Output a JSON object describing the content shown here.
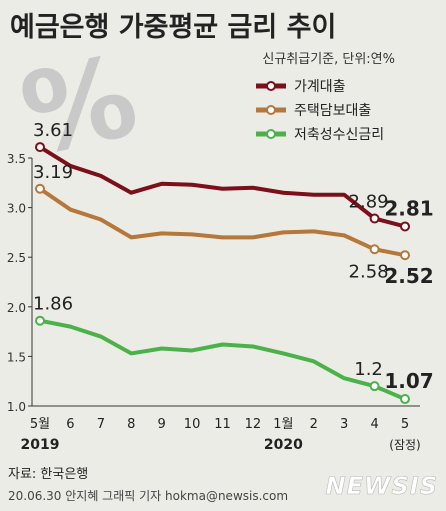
{
  "title": "예금은행 가중평균 금리 추이",
  "subtitle": "신규취급기준, 단위:연%",
  "source": "자료: 한국은행",
  "credit": "20.06.30 안지혜 그래픽 기자 hokma@newsis.com",
  "logo": "NEWSIS",
  "decoration_text": "%",
  "chart_data": {
    "type": "line",
    "x": [
      "5월",
      "6",
      "7",
      "8",
      "9",
      "10",
      "11",
      "12",
      "1월",
      "2",
      "3",
      "4",
      "5"
    ],
    "x_sublabels": [
      {
        "index": 0,
        "text": "2019"
      },
      {
        "index": 8,
        "text": "2020"
      },
      {
        "index": 12,
        "text": "(잠정)"
      }
    ],
    "ylim": [
      1.0,
      3.5
    ],
    "yticks": [
      "1.0",
      "1.5",
      "2.0",
      "2.5",
      "3.0",
      "3.5"
    ],
    "grid": false,
    "legend_position": "top-right",
    "series": [
      {
        "name": "가계대출",
        "color": "#7b0f1a",
        "values": [
          3.61,
          3.42,
          3.32,
          3.15,
          3.24,
          3.23,
          3.19,
          3.2,
          3.15,
          3.13,
          3.13,
          2.89,
          2.81
        ]
      },
      {
        "name": "주택담보대출",
        "color": "#b5773a",
        "values": [
          3.19,
          2.98,
          2.88,
          2.7,
          2.74,
          2.73,
          2.7,
          2.7,
          2.75,
          2.76,
          2.72,
          2.58,
          2.52
        ]
      },
      {
        "name": "저축성수신금리",
        "color": "#4bb24a",
        "values": [
          1.86,
          1.8,
          1.7,
          1.53,
          1.58,
          1.56,
          1.62,
          1.6,
          1.53,
          1.45,
          1.28,
          1.2,
          1.07
        ]
      }
    ],
    "annotations": [
      {
        "series": 0,
        "index": 0,
        "text": "3.61"
      },
      {
        "series": 0,
        "index": 11,
        "text": "2.89"
      },
      {
        "series": 0,
        "index": 12,
        "text": "2.81"
      },
      {
        "series": 1,
        "index": 0,
        "text": "3.19"
      },
      {
        "series": 1,
        "index": 11,
        "text": "2.58"
      },
      {
        "series": 1,
        "index": 12,
        "text": "2.52"
      },
      {
        "series": 2,
        "index": 0,
        "text": "1.86"
      },
      {
        "series": 2,
        "index": 11,
        "text": "1.2"
      },
      {
        "series": 2,
        "index": 12,
        "text": "1.07"
      }
    ]
  }
}
